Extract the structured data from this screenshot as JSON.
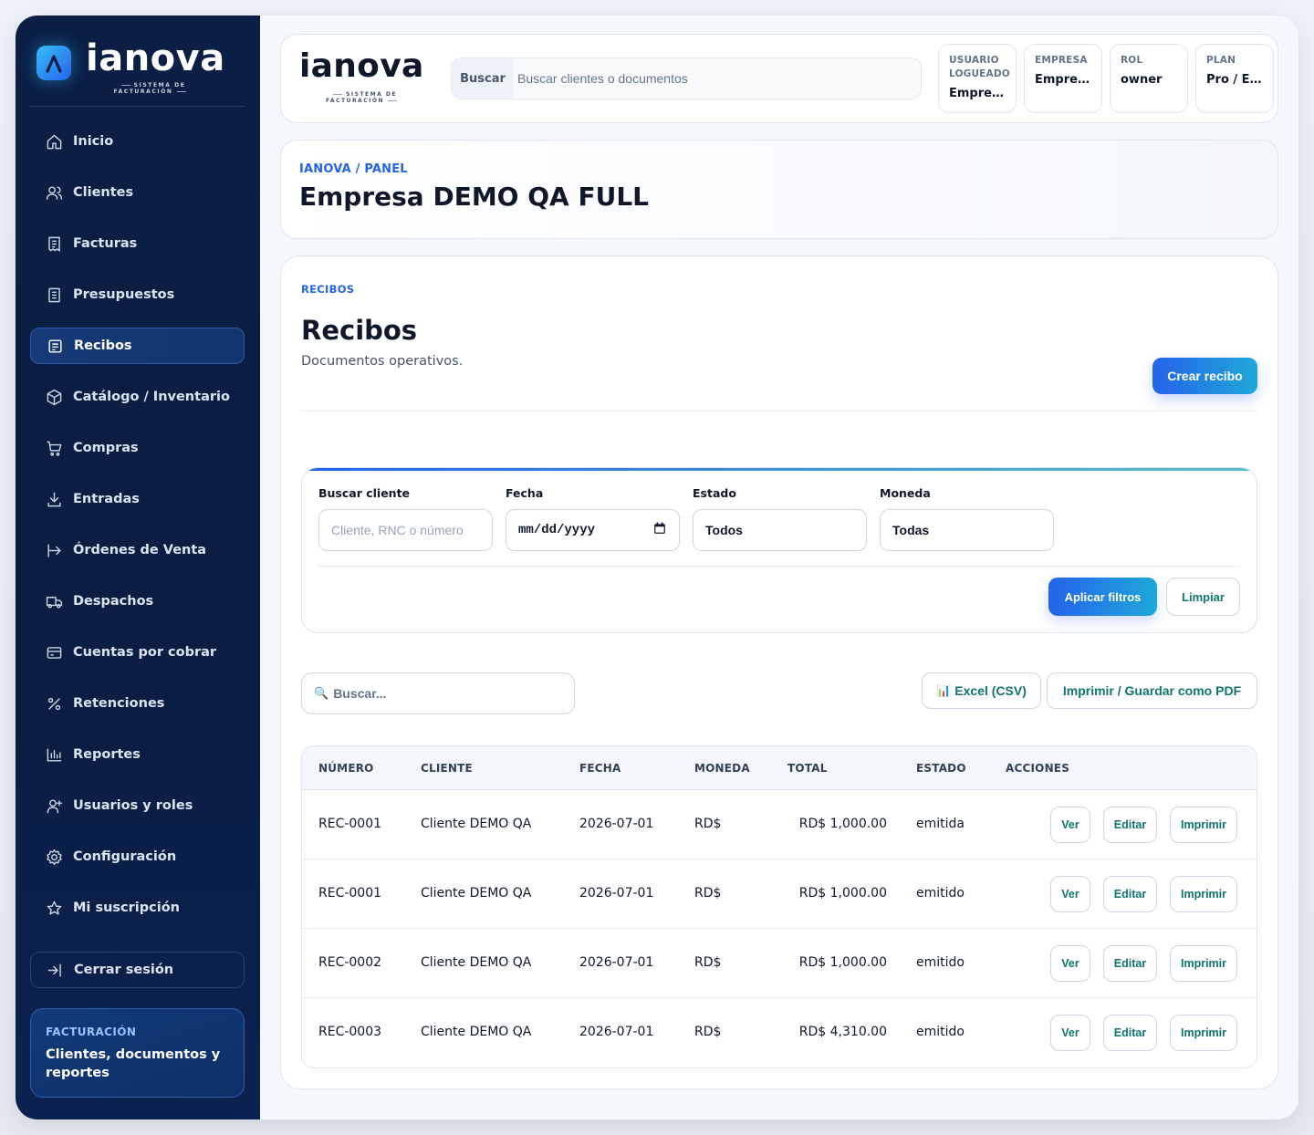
{
  "brand": {
    "name": "ianova",
    "subtitle": "SISTEMA DE FACTURACIÓN"
  },
  "sidebar": {
    "items": [
      {
        "label": "Inicio",
        "icon": "home-icon"
      },
      {
        "label": "Clientes",
        "icon": "users-icon"
      },
      {
        "label": "Facturas",
        "icon": "invoice-icon"
      },
      {
        "label": "Presupuestos",
        "icon": "receipt-icon"
      },
      {
        "label": "Recibos",
        "icon": "receipt-list-icon",
        "active": true
      },
      {
        "label": "Catálogo / Inventario",
        "icon": "box-icon"
      },
      {
        "label": "Compras",
        "icon": "cart-icon"
      },
      {
        "label": "Entradas",
        "icon": "download-icon"
      },
      {
        "label": "Órdenes de Venta",
        "icon": "arrow-right-icon"
      },
      {
        "label": "Despachos",
        "icon": "truck-icon"
      },
      {
        "label": "Cuentas por cobrar",
        "icon": "card-icon"
      },
      {
        "label": "Retenciones",
        "icon": "percent-icon"
      },
      {
        "label": "Reportes",
        "icon": "bar-chart-icon"
      },
      {
        "label": "Usuarios y roles",
        "icon": "user-plus-icon"
      },
      {
        "label": "Configuración",
        "icon": "gear-icon"
      },
      {
        "label": "Mi suscripción",
        "icon": "star-icon"
      }
    ],
    "logout": "Cerrar sesión",
    "card": {
      "eyebrow": "FACTURACIÓN",
      "text": "Clientes, documentos y reportes"
    }
  },
  "topbar": {
    "search_label": "Buscar",
    "search_placeholder": "Buscar clientes o documentos",
    "chips": [
      {
        "key": "USUARIO LOGUEADO",
        "value": "Empres..."
      },
      {
        "key": "EMPRESA",
        "value": "Empres..."
      },
      {
        "key": "ROL",
        "value": "owner"
      },
      {
        "key": "PLAN",
        "value": "Pro / Em..."
      }
    ]
  },
  "hero": {
    "breadcrumb": "IANOVA / PANEL",
    "title": "Empresa DEMO QA FULL"
  },
  "panel": {
    "eyebrow": "RECIBOS",
    "title": "Recibos",
    "description": "Documentos operativos.",
    "create_label": "Crear recibo"
  },
  "filters": {
    "client": {
      "label": "Buscar cliente",
      "placeholder": "Cliente, RNC o número"
    },
    "date": {
      "label": "Fecha",
      "value": "mm/dd/yyyy"
    },
    "status": {
      "label": "Estado",
      "value": "Todos"
    },
    "currency": {
      "label": "Moneda",
      "value": "Todas"
    },
    "apply_label": "Aplicar filtros",
    "clear_label": "Limpiar"
  },
  "toolbar": {
    "search_placeholder": "Buscar...",
    "excel_label": "Excel (CSV)",
    "pdf_label": "Imprimir / Guardar como PDF"
  },
  "table": {
    "headers": [
      "NÚMERO",
      "CLIENTE",
      "FECHA",
      "MONEDA",
      "TOTAL",
      "ESTADO",
      "ACCIONES"
    ],
    "rows": [
      {
        "number": "REC-0001",
        "client": "Cliente DEMO QA",
        "date": "2026-07-01",
        "currency": "RD$",
        "total": "RD$ 1,000.00",
        "status": "emitida"
      },
      {
        "number": "REC-0001",
        "client": "Cliente DEMO QA",
        "date": "2026-07-01",
        "currency": "RD$",
        "total": "RD$ 1,000.00",
        "status": "emitido"
      },
      {
        "number": "REC-0002",
        "client": "Cliente DEMO QA",
        "date": "2026-07-01",
        "currency": "RD$",
        "total": "RD$ 1,000.00",
        "status": "emitido"
      },
      {
        "number": "REC-0003",
        "client": "Cliente DEMO QA",
        "date": "2026-07-01",
        "currency": "RD$",
        "total": "RD$ 4,310.00",
        "status": "emitido"
      }
    ],
    "actions": {
      "view": "Ver",
      "edit": "Editar",
      "print": "Imprimir"
    }
  },
  "colors": {
    "sidebar": "#0b1f45",
    "accent": "#2563eb",
    "accent2": "#1ea8d8",
    "action_text": "#0f766e"
  }
}
